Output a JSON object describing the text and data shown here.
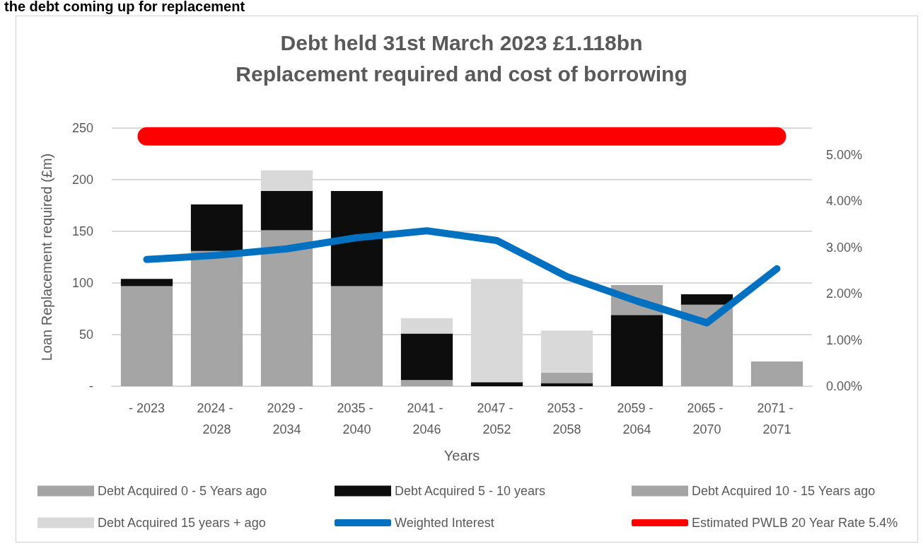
{
  "chart_data": {
    "type": "bar",
    "stacked": true,
    "title": "Debt held 31st March 2023 £1.118bn",
    "subtitle": "Replacement required and cost of borrowing",
    "xlabel": "Years",
    "ylabel": "Loan Replacement required (£m)",
    "annotations": [
      "the debt coming up for replacement"
    ],
    "categories": [
      "- 2023",
      "2024 - 2028",
      "2029 - 2034",
      "2035 - 2040",
      "2041 - 2046",
      "2047 - 2052",
      "2053 - 2058",
      "2059 - 2064",
      "2065 - 2070",
      "2071 - 2071"
    ],
    "series": [
      {
        "name": "Debt Acquired 0 - 5 Years ago",
        "color": "#a5a5a5",
        "values": [
          97,
          131,
          151,
          97,
          6,
          0,
          0,
          0,
          79,
          24
        ]
      },
      {
        "name": "Debt Acquired 5 - 10 years",
        "color": "#0d0d0d",
        "values": [
          7,
          45,
          38,
          92,
          45,
          4,
          3,
          69,
          10,
          0
        ]
      },
      {
        "name": "Debt Acquired 10 - 15 Years ago",
        "color": "#a5a5a5",
        "values": [
          0,
          0,
          0,
          0,
          0,
          0,
          10,
          29,
          0,
          0
        ]
      },
      {
        "name": "Debt Acquired 15 years + ago",
        "color": "#d9d9d9",
        "values": [
          0,
          0,
          20,
          0,
          15,
          100,
          41,
          0,
          0,
          0
        ]
      },
      {
        "name": "Weighted Interest",
        "type": "line",
        "axis": "y2",
        "color": "#0070c0",
        "values": [
          2.74,
          2.83,
          2.97,
          3.21,
          3.36,
          3.15,
          2.37,
          1.84,
          1.37,
          2.54
        ]
      },
      {
        "name": "Estimated PWLB 20 Year Rate 5.4%",
        "type": "line",
        "axis": "y2",
        "color": "#ff0000",
        "values": [
          5.4,
          5.4,
          5.4,
          5.4,
          5.4,
          5.4,
          5.4,
          5.4,
          5.4,
          5.4
        ]
      }
    ],
    "ylim": [
      0,
      250
    ],
    "yticks": [
      {
        "value": 0,
        "label": "-"
      },
      50,
      100,
      150,
      200,
      250
    ],
    "y2lim": [
      0,
      5.58
    ],
    "y2ticks": [
      {
        "value": 0,
        "label": "0.00%"
      },
      {
        "value": 1,
        "label": "1.00%"
      },
      {
        "value": 2,
        "label": "2.00%"
      },
      {
        "value": 3,
        "label": "3.00%"
      },
      {
        "value": 4,
        "label": "4.00%"
      },
      {
        "value": 5,
        "label": "5.00%"
      }
    ],
    "grid": "y",
    "legend": "bottom"
  }
}
